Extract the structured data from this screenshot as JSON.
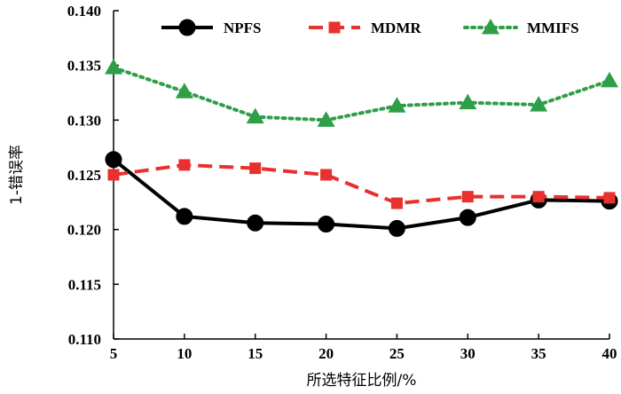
{
  "chart_data": {
    "type": "line",
    "title": "",
    "xlabel": "所选特征比例/%",
    "ylabel": "1-错误率",
    "x": [
      5,
      10,
      15,
      20,
      25,
      30,
      35,
      40
    ],
    "xticks": [
      "5",
      "10",
      "15",
      "20",
      "25",
      "30",
      "35",
      "40"
    ],
    "xlim": [
      5,
      40
    ],
    "ylim": [
      0.11,
      0.14
    ],
    "yticks": [
      "0.110",
      "0.115",
      "0.120",
      "0.125",
      "0.130",
      "0.135",
      "0.140"
    ],
    "grid": false,
    "legend_position": "top",
    "series": [
      {
        "name": "NPFS",
        "color": "#000000",
        "line_style": "solid",
        "marker": "circle",
        "values": [
          0.1264,
          0.1212,
          0.1206,
          0.1205,
          0.1201,
          0.1211,
          0.1227,
          0.1226
        ]
      },
      {
        "name": "MDMR",
        "color": "#e8312f",
        "line_style": "dashed",
        "marker": "square",
        "values": [
          0.125,
          0.1259,
          0.1256,
          0.125,
          0.1224,
          0.123,
          0.123,
          0.1229
        ]
      },
      {
        "name": "MMIFS",
        "color": "#2e9e47",
        "line_style": "dotted",
        "marker": "triangle",
        "values": [
          0.1348,
          0.1326,
          0.1303,
          0.13,
          0.1313,
          0.1316,
          0.1314,
          0.1336
        ]
      }
    ]
  }
}
